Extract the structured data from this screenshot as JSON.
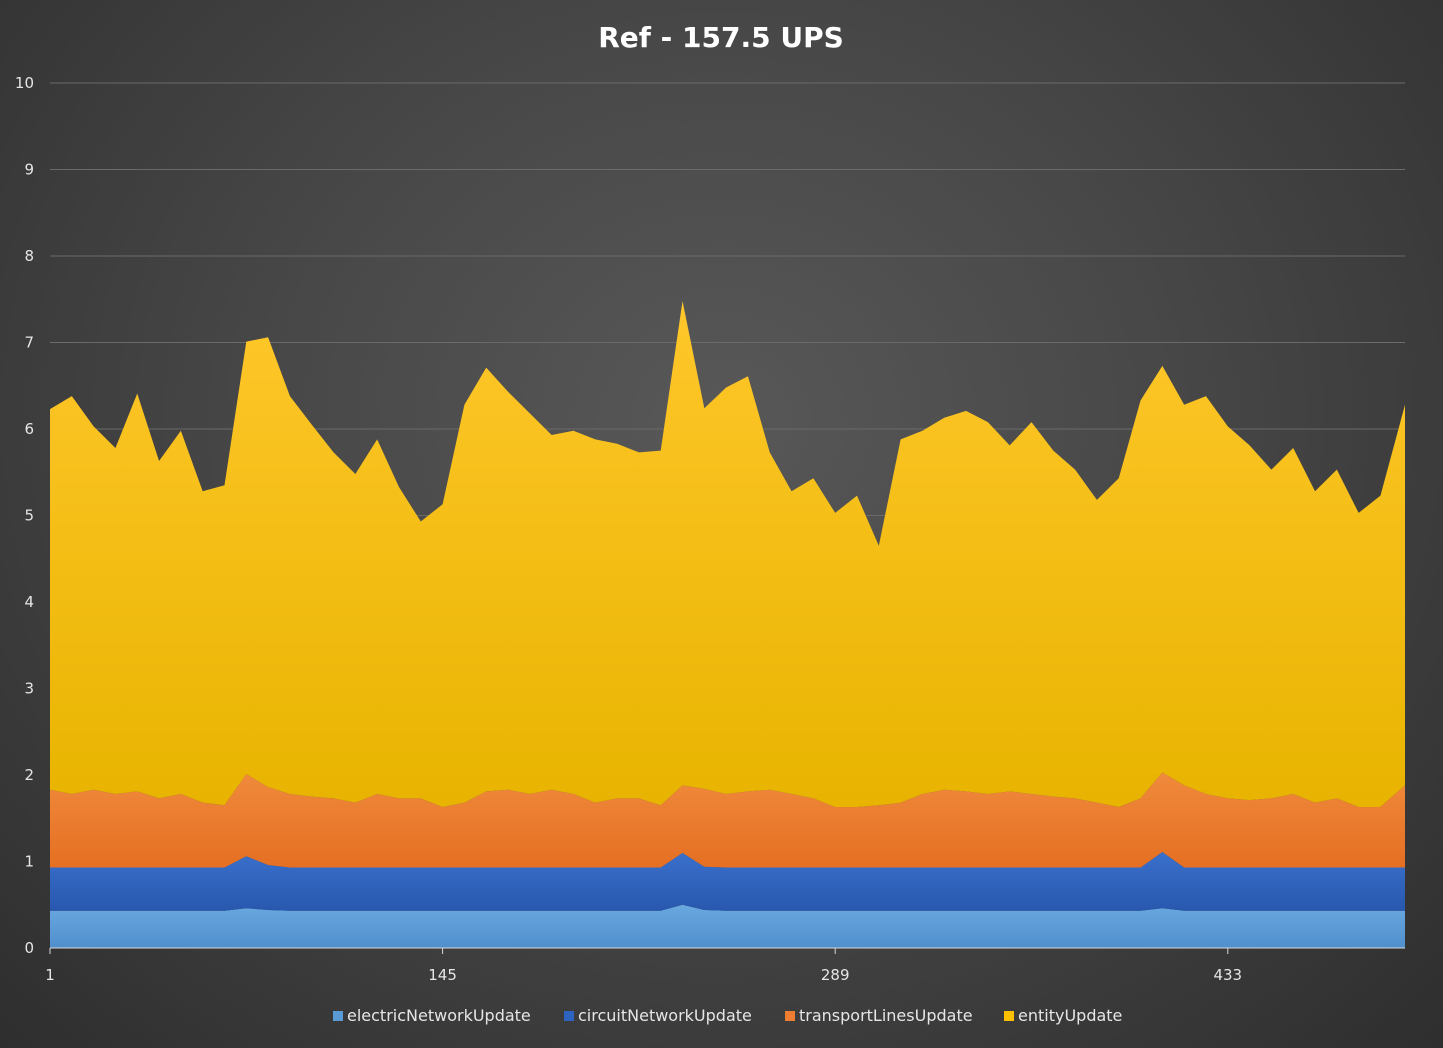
{
  "chart_data": {
    "type": "area",
    "stacked": true,
    "title": "Ref - 157.5 UPS",
    "ylim": [
      0,
      10
    ],
    "yticks": [
      0,
      1,
      2,
      3,
      4,
      5,
      6,
      7,
      8,
      9,
      10
    ],
    "xlim": [
      1,
      498
    ],
    "xticks": [
      1,
      145,
      289,
      433
    ],
    "grid": true,
    "legend_position": "bottom",
    "colors": {
      "electricNetworkUpdate": "#5b9bd5",
      "circuitNetworkUpdate": "#2e64c0",
      "transportLinesUpdate": "#ed7d31",
      "entityUpdate": "#ffc000"
    },
    "x": [
      1,
      9,
      17,
      25,
      33,
      41,
      49,
      57,
      65,
      73,
      81,
      89,
      97,
      105,
      113,
      121,
      129,
      137,
      145,
      153,
      161,
      169,
      177,
      185,
      193,
      201,
      209,
      217,
      225,
      233,
      241,
      249,
      257,
      265,
      273,
      281,
      289,
      297,
      305,
      313,
      321,
      329,
      337,
      345,
      353,
      361,
      369,
      377,
      385,
      393,
      401,
      409,
      417,
      425,
      433,
      441,
      449,
      457,
      465,
      473,
      481,
      489,
      498
    ],
    "series": [
      {
        "name": "electricNetworkUpdate",
        "values": [
          0.43,
          0.43,
          0.43,
          0.43,
          0.43,
          0.43,
          0.43,
          0.43,
          0.43,
          0.46,
          0.44,
          0.43,
          0.43,
          0.43,
          0.43,
          0.43,
          0.43,
          0.43,
          0.43,
          0.43,
          0.43,
          0.43,
          0.43,
          0.43,
          0.43,
          0.43,
          0.43,
          0.43,
          0.43,
          0.5,
          0.44,
          0.43,
          0.43,
          0.43,
          0.43,
          0.43,
          0.43,
          0.43,
          0.43,
          0.43,
          0.43,
          0.43,
          0.43,
          0.43,
          0.43,
          0.43,
          0.43,
          0.43,
          0.43,
          0.43,
          0.43,
          0.46,
          0.43,
          0.43,
          0.43,
          0.43,
          0.43,
          0.43,
          0.43,
          0.43,
          0.43,
          0.43,
          0.43
        ]
      },
      {
        "name": "circuitNetworkUpdate",
        "values": [
          0.5,
          0.5,
          0.5,
          0.5,
          0.5,
          0.5,
          0.5,
          0.5,
          0.5,
          0.6,
          0.52,
          0.5,
          0.5,
          0.5,
          0.5,
          0.5,
          0.5,
          0.5,
          0.5,
          0.5,
          0.5,
          0.5,
          0.5,
          0.5,
          0.5,
          0.5,
          0.5,
          0.5,
          0.5,
          0.6,
          0.5,
          0.5,
          0.5,
          0.5,
          0.5,
          0.5,
          0.5,
          0.5,
          0.5,
          0.5,
          0.5,
          0.5,
          0.5,
          0.5,
          0.5,
          0.5,
          0.5,
          0.5,
          0.5,
          0.5,
          0.5,
          0.65,
          0.5,
          0.5,
          0.5,
          0.5,
          0.5,
          0.5,
          0.5,
          0.5,
          0.5,
          0.5,
          0.5
        ]
      },
      {
        "name": "transportLinesUpdate",
        "values": [
          0.9,
          0.85,
          0.9,
          0.85,
          0.88,
          0.8,
          0.85,
          0.75,
          0.72,
          0.95,
          0.9,
          0.85,
          0.82,
          0.8,
          0.75,
          0.85,
          0.8,
          0.8,
          0.7,
          0.75,
          0.88,
          0.9,
          0.85,
          0.9,
          0.85,
          0.75,
          0.8,
          0.8,
          0.72,
          0.78,
          0.9,
          0.85,
          0.88,
          0.9,
          0.85,
          0.8,
          0.7,
          0.7,
          0.72,
          0.75,
          0.85,
          0.9,
          0.88,
          0.85,
          0.88,
          0.85,
          0.82,
          0.8,
          0.75,
          0.7,
          0.8,
          0.92,
          0.95,
          0.85,
          0.8,
          0.78,
          0.8,
          0.85,
          0.75,
          0.8,
          0.7,
          0.7,
          0.95
        ]
      },
      {
        "name": "entityUpdate",
        "values": [
          4.4,
          4.6,
          4.2,
          4.0,
          4.6,
          3.9,
          4.2,
          3.6,
          3.7,
          5.0,
          5.2,
          4.6,
          4.3,
          4.0,
          3.8,
          4.1,
          3.6,
          3.2,
          3.5,
          4.6,
          4.9,
          4.6,
          4.4,
          4.1,
          4.2,
          4.2,
          4.1,
          4.0,
          4.1,
          5.6,
          4.4,
          4.7,
          4.8,
          3.9,
          3.5,
          3.7,
          3.4,
          3.6,
          3.0,
          4.2,
          4.2,
          4.3,
          4.4,
          4.3,
          4.0,
          4.3,
          4.0,
          3.8,
          3.5,
          3.8,
          4.6,
          4.7,
          4.4,
          4.6,
          4.3,
          4.1,
          3.8,
          4.0,
          3.6,
          3.8,
          3.4,
          3.6,
          4.4
        ]
      }
    ]
  }
}
